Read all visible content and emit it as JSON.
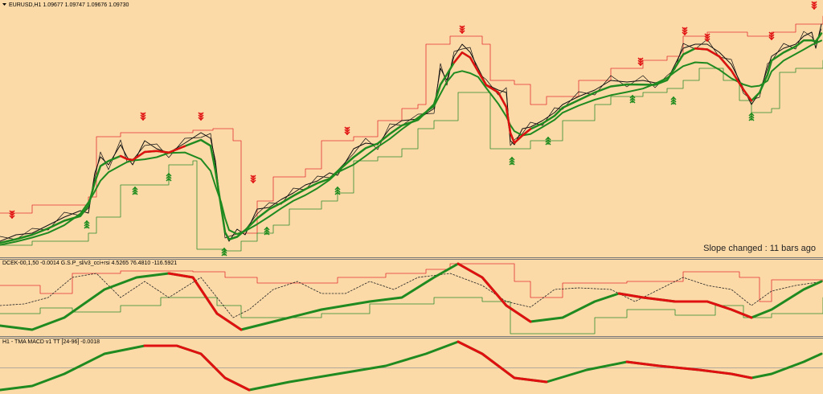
{
  "header": {
    "symbol_info": "EURUSD,H1  1.09677 1.09747 1.09676 1.09730"
  },
  "main_panel": {
    "status": "Slope changed : 11 bars ago"
  },
  "indicator_1": {
    "label": "DCEK-00,1,50 -0.0014  G.S.P_sl/v3_cci+rsi 4.5265 76.4810 -116.5921"
  },
  "indicator_2": {
    "label": "H1 - TMA MACD v1 TT [24-96] -0.0018"
  }
}
